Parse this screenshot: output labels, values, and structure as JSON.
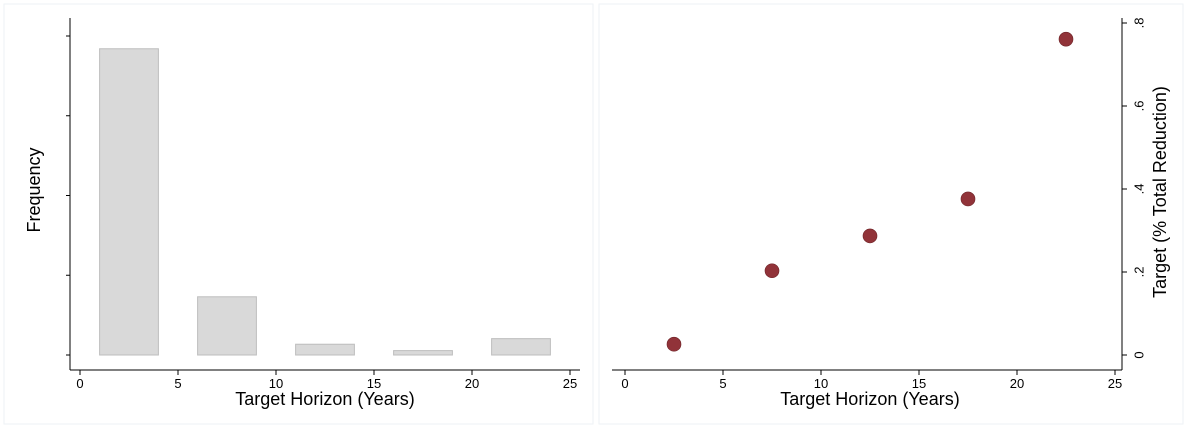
{
  "chart_data": [
    {
      "type": "bar",
      "xlabel": "Target Horizon (Years)",
      "ylabel": "Frequency",
      "xlim": [
        0,
        25
      ],
      "xticks": [
        "0",
        "5",
        "10",
        "15",
        "20",
        "25"
      ],
      "ylim": [
        0,
        0.8
      ],
      "yticks_labeled": false,
      "grid": false,
      "bar_color": "#d9d9d9",
      "bar_edge_color": "#bdbdbd",
      "bars": [
        {
          "x0": 1,
          "x1": 4,
          "value": 0.768
        },
        {
          "x0": 6,
          "x1": 9,
          "value": 0.146
        },
        {
          "x0": 11,
          "x1": 14,
          "value": 0.027
        },
        {
          "x0": 16,
          "x1": 19,
          "value": 0.011
        },
        {
          "x0": 21,
          "x1": 24,
          "value": 0.041
        }
      ]
    },
    {
      "type": "scatter",
      "xlabel": "Target Horizon (Years)",
      "ylabel": "Target (% Total Reduction)",
      "xlim": [
        0,
        25
      ],
      "ylim": [
        0,
        0.8
      ],
      "xticks": [
        "0",
        "5",
        "10",
        "15",
        "20",
        "25"
      ],
      "yticks": [
        ".8",
        ".6",
        ".4",
        ".2",
        "0"
      ],
      "y_axis_side": "right",
      "grid": false,
      "marker_color": "#913339",
      "points": [
        {
          "x": 2.5,
          "y": 0.026
        },
        {
          "x": 7.5,
          "y": 0.203
        },
        {
          "x": 12.5,
          "y": 0.287
        },
        {
          "x": 17.5,
          "y": 0.376
        },
        {
          "x": 22.5,
          "y": 0.761
        }
      ]
    }
  ]
}
